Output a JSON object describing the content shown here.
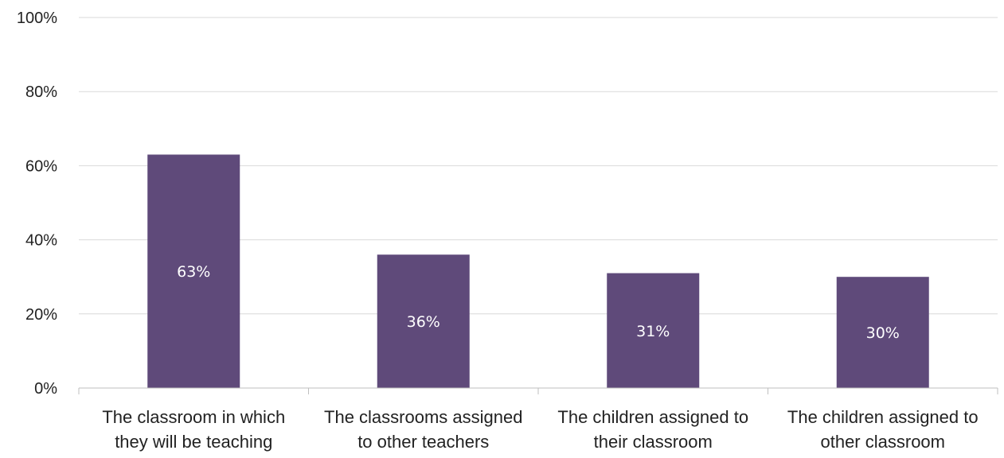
{
  "chart_data": {
    "type": "bar",
    "categories": [
      [
        "The classroom in which",
        "they will be teaching"
      ],
      [
        "The classrooms assigned",
        "to other teachers"
      ],
      [
        "The children assigned to",
        "their classroom"
      ],
      [
        "The children assigned to",
        "other classroom"
      ]
    ],
    "values": [
      63,
      36,
      31,
      30
    ],
    "data_labels": [
      "63%",
      "36%",
      "31%",
      "30%"
    ],
    "ylim": [
      0,
      100
    ],
    "yticks": [
      0,
      20,
      40,
      60,
      80,
      100
    ],
    "ytick_labels": [
      "0%",
      "20%",
      "40%",
      "60%",
      "80%",
      "100%"
    ],
    "title": "",
    "xlabel": "",
    "ylabel": "",
    "grid": true,
    "legend": "none",
    "bar_color": "#5f4a7a"
  }
}
